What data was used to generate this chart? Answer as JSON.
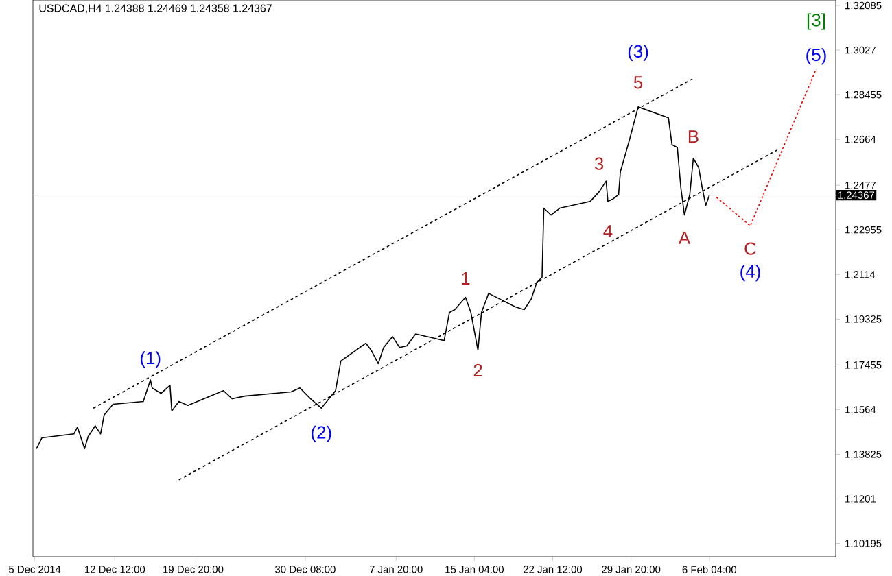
{
  "chart_data": {
    "type": "line",
    "title": "USDCAD,H4  1.24388 1.24469 1.24358 1.24367",
    "xlim": [
      "2014-12-04T20:00",
      "2015-02-18T00:00"
    ],
    "ylim": [
      1.0965,
      1.3231
    ],
    "xticks": [
      {
        "value": "2014-12-05T00:00",
        "label": "5 Dec 2014"
      },
      {
        "value": "2014-12-12T12:00",
        "label": "12 Dec 12:00"
      },
      {
        "value": "2014-12-19T20:00",
        "label": "19 Dec 20:00"
      },
      {
        "value": "2014-12-30T08:00",
        "label": "30 Dec 08:00"
      },
      {
        "value": "2015-01-07T20:00",
        "label": "7 Jan 20:00"
      },
      {
        "value": "2015-01-15T04:00",
        "label": "15 Jan 04:00"
      },
      {
        "value": "2015-01-22T12:00",
        "label": "22 Jan 12:00"
      },
      {
        "value": "2015-01-29T20:00",
        "label": "29 Jan 20:00"
      },
      {
        "value": "2015-02-06T04:00",
        "label": "6 Feb 04:00"
      }
    ],
    "yticks": [
      1.32085,
      1.3027,
      1.28455,
      1.2664,
      1.2477,
      1.22955,
      1.2114,
      1.19325,
      1.17455,
      1.1564,
      1.13825,
      1.1201,
      1.10195
    ],
    "grid": false,
    "marker": "none",
    "series": [
      {
        "color": "#000000",
        "line_style": "solid",
        "x": [
          "2014-12-05T04:00",
          "2014-12-05T16:00",
          "2014-12-08T16:00",
          "2014-12-09T00:00",
          "2014-12-09T16:00",
          "2014-12-10T00:00",
          "2014-12-10T16:00",
          "2014-12-11T04:00",
          "2014-12-11T12:00",
          "2014-12-12T08:00",
          "2014-12-15T04:00",
          "2014-12-15T20:00",
          "2014-12-16T00:00",
          "2014-12-16T20:00",
          "2014-12-17T16:00",
          "2014-12-17T20:00",
          "2014-12-18T12:00",
          "2014-12-19T08:00",
          "2014-12-22T16:00",
          "2014-12-23T12:00",
          "2014-12-24T16:00",
          "2014-12-29T00:00",
          "2014-12-29T20:00",
          "2014-12-30T20:00",
          "2014-12-31T20:00",
          "2015-01-02T04:00",
          "2015-01-02T16:00",
          "2015-01-05T00:00",
          "2015-01-05T12:00",
          "2015-01-06T04:00",
          "2015-01-06T16:00",
          "2015-01-07T12:00",
          "2015-01-08T04:00",
          "2015-01-08T20:00",
          "2015-01-09T16:00",
          "2015-01-12T08:00",
          "2015-01-12T20:00",
          "2015-01-13T08:00",
          "2015-01-14T08:00",
          "2015-01-14T20:00",
          "2015-01-15T12:00",
          "2015-01-15T20:00",
          "2015-01-16T12:00",
          "2015-01-19T00:00",
          "2015-01-19T20:00",
          "2015-01-20T12:00",
          "2015-01-21T00:00",
          "2015-01-21T12:00",
          "2015-01-21T16:00",
          "2015-01-22T08:00",
          "2015-01-23T04:00",
          "2015-01-26T00:00",
          "2015-01-26T20:00",
          "2015-01-27T12:00",
          "2015-01-27T16:00",
          "2015-01-28T04:00",
          "2015-01-28T16:00",
          "2015-01-28T20:00",
          "2015-01-29T16:00",
          "2015-01-30T12:00",
          "2015-02-02T08:00",
          "2015-02-02T16:00",
          "2015-02-03T04:00",
          "2015-02-03T12:00",
          "2015-02-03T20:00",
          "2015-02-04T08:00",
          "2015-02-04T16:00",
          "2015-02-05T04:00",
          "2015-02-05T12:00",
          "2015-02-05T20:00",
          "2015-02-06T04:00"
        ],
        "values": [
          1.1405,
          1.1449,
          1.1465,
          1.1493,
          1.1405,
          1.1454,
          1.1498,
          1.1465,
          1.1542,
          1.1586,
          1.1597,
          1.1685,
          1.1652,
          1.163,
          1.1663,
          1.1559,
          1.1597,
          1.1581,
          1.1641,
          1.1608,
          1.1619,
          1.1636,
          1.1652,
          1.1608,
          1.157,
          1.1641,
          1.1762,
          1.1834,
          1.1806,
          1.1751,
          1.1817,
          1.1861,
          1.1817,
          1.1823,
          1.1872,
          1.1845,
          1.196,
          1.1971,
          1.2021,
          1.196,
          1.1806,
          1.196,
          1.2037,
          1.1982,
          1.1971,
          1.2015,
          1.2081,
          1.2103,
          1.2384,
          1.2356,
          1.2384,
          1.2411,
          1.245,
          1.2494,
          1.2411,
          1.2422,
          1.2439,
          1.2532,
          1.2659,
          1.2796,
          1.2752,
          1.2642,
          1.2631,
          1.2466,
          1.2356,
          1.2439,
          1.2587,
          1.2549,
          1.2466,
          1.2395,
          1.2437
        ]
      },
      {
        "color": "#000000",
        "line_style": "dashed",
        "x": [
          "2014-12-10T12:00",
          "2015-02-04T16:00"
        ],
        "values": [
          1.157,
          1.2912
        ]
      },
      {
        "color": "#000000",
        "line_style": "dashed",
        "x": [
          "2014-12-18T12:00",
          "2015-02-12T12:00"
        ],
        "values": [
          1.1278,
          1.262
        ]
      },
      {
        "color": "#ff0000",
        "line_style": "dotted",
        "x": [
          "2015-02-06T20:00",
          "2015-02-10T00:00",
          "2015-02-16T04:00"
        ],
        "values": [
          1.2428,
          1.2312,
          1.295
        ]
      }
    ],
    "ref_lines": [
      {
        "axis": "y",
        "value": 1.24367,
        "label": "1.24367",
        "color": "#c0c0c0"
      }
    ],
    "annotations": [
      "(1)",
      "(2)",
      "(3)",
      "(4)",
      {
        "text": "(5)",
        "x": "2015-02-16T04:00",
        "y": 1.295
      },
      "[3]",
      "1",
      "2",
      "3",
      "4",
      "5",
      "A",
      "B",
      "C"
    ]
  }
}
